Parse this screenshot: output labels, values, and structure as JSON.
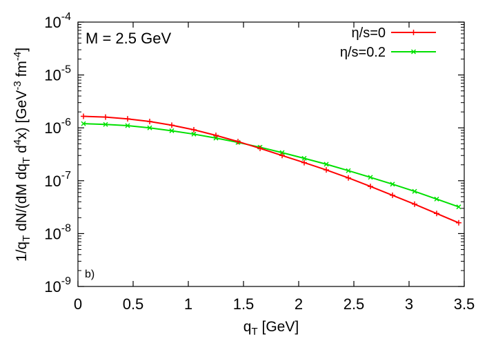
{
  "chart_data": {
    "type": "line",
    "title": "",
    "annotation": "M = 2.5 GeV",
    "panel_label": "b)",
    "xlabel": {
      "main": "q",
      "sub": "T",
      "rest": " [GeV]"
    },
    "ylabel": {
      "p1": "1/q",
      "s1": "T",
      "p2": " dN/(dM dq",
      "s2": "T",
      "p3": " d",
      "sup1": "4",
      "p4": "x) [GeV",
      "sup2": "-3",
      "p5": " fm",
      "sup3": "-4",
      "p6": "]"
    },
    "x_ticks": [
      "0",
      "0.5",
      "1",
      "1.5",
      "2",
      "2.5",
      "3",
      "3.5"
    ],
    "y_ticks": [
      {
        "base": "10",
        "exp": "-9"
      },
      {
        "base": "10",
        "exp": "-8"
      },
      {
        "base": "10",
        "exp": "-7"
      },
      {
        "base": "10",
        "exp": "-6"
      },
      {
        "base": "10",
        "exp": "-5"
      },
      {
        "base": "10",
        "exp": "-4"
      }
    ],
    "xlim": [
      0,
      3.5
    ],
    "ylim": [
      1e-09,
      0.0001
    ],
    "yscale": "log",
    "grid": false,
    "legend_position": "top-right",
    "x": [
      0.05,
      0.25,
      0.45,
      0.65,
      0.85,
      1.05,
      1.25,
      1.45,
      1.65,
      1.85,
      2.05,
      2.25,
      2.45,
      2.65,
      2.85,
      3.05,
      3.25,
      3.45
    ],
    "series": [
      {
        "name": "η/s=0",
        "color": "#ff0000",
        "marker": "plus",
        "values": [
          1.65e-06,
          1.6e-06,
          1.48e-06,
          1.32e-06,
          1.12e-06,
          9.2e-07,
          7.2e-07,
          5.5e-07,
          4.1e-07,
          3e-07,
          2.2e-07,
          1.6e-07,
          1.13e-07,
          7.8e-08,
          5.3e-08,
          3.6e-08,
          2.4e-08,
          1.6e-08
        ]
      },
      {
        "name": "η/s=0.2",
        "color": "#00e000",
        "marker": "cross",
        "values": [
          1.2e-06,
          1.16e-06,
          1.1e-06,
          1e-06,
          8.8e-07,
          7.6e-07,
          6.4e-07,
          5.3e-07,
          4.3e-07,
          3.4e-07,
          2.65e-07,
          2.05e-07,
          1.55e-07,
          1.16e-07,
          8.6e-08,
          6.3e-08,
          4.5e-08,
          3.2e-08
        ]
      }
    ]
  }
}
